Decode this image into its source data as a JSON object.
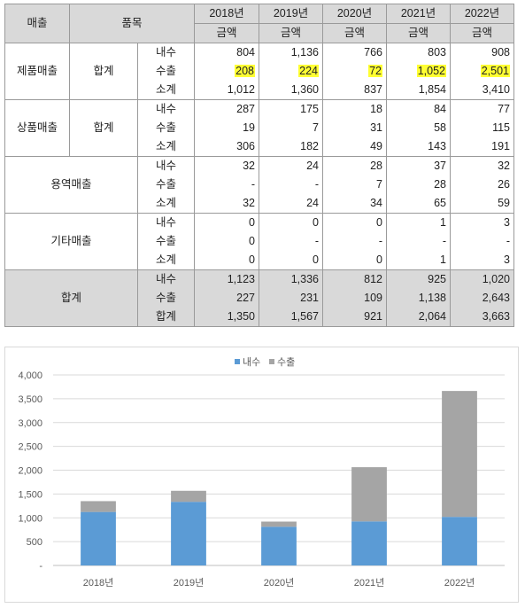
{
  "table": {
    "header_row1": {
      "category": "매출",
      "item": "품목",
      "years": [
        "2018년",
        "2019년",
        "2020년",
        "2021년",
        "2022년"
      ]
    },
    "header_row2": {
      "amount_label": "금액"
    },
    "groups": [
      {
        "name": "제품매출",
        "sub": "합계",
        "rows": [
          {
            "label": "내수",
            "values": [
              "804",
              "1,136",
              "766",
              "803",
              "908"
            ]
          },
          {
            "label": "수출",
            "values": [
              "208",
              "224",
              "72",
              "1,052",
              "2,501"
            ]
          },
          {
            "label": "소계",
            "values": [
              "1,012",
              "1,360",
              "837",
              "1,854",
              "3,410"
            ]
          }
        ]
      },
      {
        "name": "상품매출",
        "sub": "합계",
        "rows": [
          {
            "label": "내수",
            "values": [
              "287",
              "175",
              "18",
              "84",
              "77"
            ]
          },
          {
            "label": "수출",
            "values": [
              "19",
              "7",
              "31",
              "58",
              "115"
            ]
          },
          {
            "label": "소계",
            "values": [
              "306",
              "182",
              "49",
              "143",
              "191"
            ]
          }
        ]
      },
      {
        "name": "용역매출",
        "sub": "",
        "rows": [
          {
            "label": "내수",
            "values": [
              "32",
              "24",
              "28",
              "37",
              "32"
            ]
          },
          {
            "label": "수출",
            "values": [
              "-",
              "-",
              "7",
              "28",
              "26"
            ]
          },
          {
            "label": "소계",
            "values": [
              "32",
              "24",
              "34",
              "65",
              "59"
            ]
          }
        ]
      },
      {
        "name": "기타매출",
        "sub": "",
        "rows": [
          {
            "label": "내수",
            "values": [
              "0",
              "0",
              "0",
              "1",
              "3"
            ]
          },
          {
            "label": "수출",
            "values": [
              "0",
              "-",
              "-",
              "-",
              "-"
            ]
          },
          {
            "label": "소계",
            "values": [
              "0",
              "0",
              "0",
              "1",
              "3"
            ]
          }
        ]
      },
      {
        "name": "합계",
        "sub": "",
        "rows": [
          {
            "label": "내수",
            "values": [
              "1,123",
              "1,336",
              "812",
              "925",
              "1,020"
            ]
          },
          {
            "label": "수출",
            "values": [
              "227",
              "231",
              "109",
              "1,138",
              "2,643"
            ]
          },
          {
            "label": "합계",
            "values": [
              "1,350",
              "1,567",
              "921",
              "2,064",
              "3,663"
            ]
          }
        ]
      }
    ],
    "highlight": {
      "group": 0,
      "row": 1,
      "color": "#ffff33"
    }
  },
  "chart_data": {
    "type": "bar",
    "stacked": true,
    "title": "",
    "xlabel": "",
    "ylabel": "",
    "categories": [
      "2018년",
      "2019년",
      "2020년",
      "2021년",
      "2022년"
    ],
    "series": [
      {
        "name": "내수",
        "values": [
          1123,
          1336,
          812,
          925,
          1020
        ],
        "color": "#5b9bd5"
      },
      {
        "name": "수출",
        "values": [
          227,
          231,
          109,
          1138,
          2643
        ],
        "color": "#a5a5a5"
      }
    ],
    "ylim": [
      0,
      4000
    ],
    "yticks": [
      "-",
      "500",
      "1,000",
      "1,500",
      "2,000",
      "2,500",
      "3,000",
      "3,500",
      "4,000"
    ],
    "grid": true,
    "legend": "top-center"
  }
}
